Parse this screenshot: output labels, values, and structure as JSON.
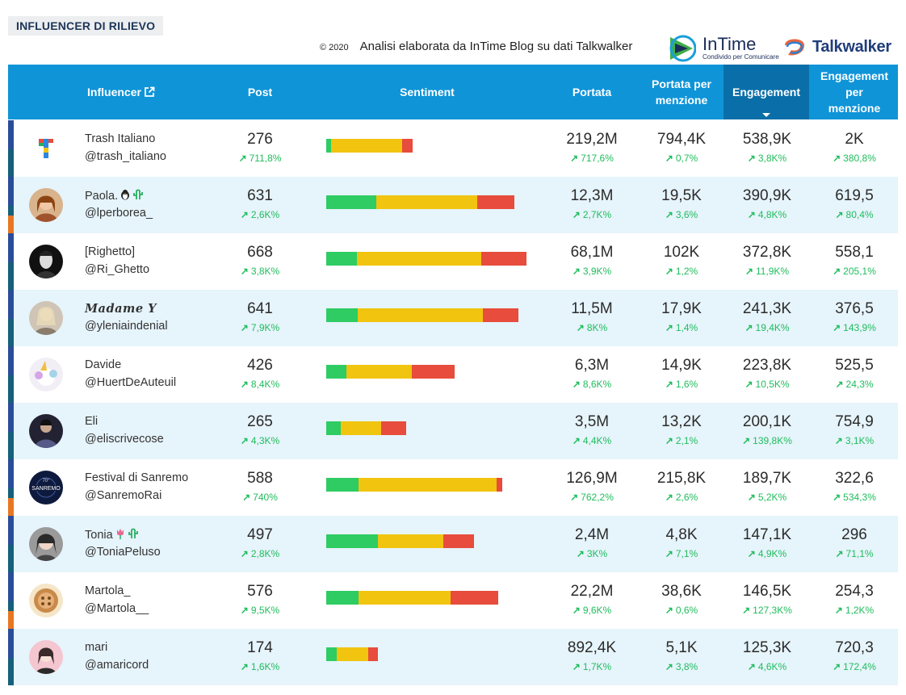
{
  "header": {
    "section_title": "INFLUENCER DI RILIEVO",
    "copyright": "© 2020",
    "credit": "Analisi elaborata da InTime Blog su dati Talkwalker",
    "intime_brand": "InTime",
    "intime_tagline": "Condivido per Comunicare",
    "talkwalker_brand": "Talkwalker"
  },
  "columns": {
    "influencer": "Influencer",
    "post": "Post",
    "sentiment": "Sentiment",
    "portata": "Portata",
    "portata_menzione_1": "Portata per",
    "portata_menzione_2": "menzione",
    "engagement": "Engagement",
    "eng_menzione_1": "Engagement",
    "eng_menzione_2": "per",
    "eng_menzione_3": "menzione"
  },
  "colors": {
    "header_bg": "#0f94d8",
    "active_header": "#0a6fa8",
    "positive": "#2ecc63",
    "neutral": "#f1c40f",
    "negative": "#e74c3c",
    "trend_up": "#1fbd5c"
  },
  "rows": [
    {
      "name": "Trash Italiano",
      "handle": "@trash_italiano",
      "post": "276",
      "post_chg": "711,8%",
      "sentiment": [
        6,
        88,
        13
      ],
      "portata": "219,2M",
      "portata_chg": "717,6%",
      "ppm": "794,4K",
      "ppm_chg": "0,7%",
      "eng": "538,9K",
      "eng_chg": "3,8K%",
      "epm": "2K",
      "epm_chg": "380,8%",
      "strip": "blue"
    },
    {
      "name": "Paola.",
      "handle": "@lperborea_",
      "post": "631",
      "post_chg": "2,6K%",
      "sentiment": [
        62,
        125,
        46
      ],
      "portata": "12,3M",
      "portata_chg": "2,7K%",
      "ppm": "19,5K",
      "ppm_chg": "3,6%",
      "eng": "390,9K",
      "eng_chg": "4,8K%",
      "epm": "619,5",
      "epm_chg": "80,4%",
      "strip": "orange"
    },
    {
      "name": "[Righetto]",
      "handle": "@Ri_Ghetto",
      "post": "668",
      "post_chg": "3,8K%",
      "sentiment": [
        38,
        154,
        56
      ],
      "portata": "68,1M",
      "portata_chg": "3,9K%",
      "ppm": "102K",
      "ppm_chg": "1,2%",
      "eng": "372,8K",
      "eng_chg": "11,9K%",
      "epm": "558,1",
      "epm_chg": "205,1%",
      "strip": "blue"
    },
    {
      "name": "Madame Y",
      "handle": "@yleniaindenial",
      "post": "641",
      "post_chg": "7,9K%",
      "sentiment": [
        39,
        155,
        44
      ],
      "portata": "11,5M",
      "portata_chg": "8K%",
      "ppm": "17,9K",
      "ppm_chg": "1,4%",
      "eng": "241,3K",
      "eng_chg": "19,4K%",
      "epm": "376,5",
      "epm_chg": "143,9%",
      "strip": "blue"
    },
    {
      "name": "Davide",
      "handle": "@HuertDeAuteuil",
      "post": "426",
      "post_chg": "8,4K%",
      "sentiment": [
        25,
        81,
        53
      ],
      "portata": "6,3M",
      "portata_chg": "8,6K%",
      "ppm": "14,9K",
      "ppm_chg": "1,6%",
      "eng": "223,8K",
      "eng_chg": "10,5K%",
      "epm": "525,5",
      "epm_chg": "24,3%",
      "strip": "blue"
    },
    {
      "name": "Eli",
      "handle": "@eliscrivecose",
      "post": "265",
      "post_chg": "4,3K%",
      "sentiment": [
        18,
        50,
        31
      ],
      "portata": "3,5M",
      "portata_chg": "4,4K%",
      "ppm": "13,2K",
      "ppm_chg": "2,1%",
      "eng": "200,1K",
      "eng_chg": "139,8K%",
      "epm": "754,9",
      "epm_chg": "3,1K%",
      "strip": "blue"
    },
    {
      "name": "Festival di Sanremo",
      "handle": "@SanremoRai",
      "post": "588",
      "post_chg": "740%",
      "sentiment": [
        40,
        171,
        7
      ],
      "portata": "126,9M",
      "portata_chg": "762,2%",
      "ppm": "215,8K",
      "ppm_chg": "2,6%",
      "eng": "189,7K",
      "eng_chg": "5,2K%",
      "epm": "322,6",
      "epm_chg": "534,3%",
      "strip": "orange"
    },
    {
      "name": "Tonia",
      "handle": "@ToniaPeluso",
      "post": "497",
      "post_chg": "2,8K%",
      "sentiment": [
        64,
        81,
        38
      ],
      "portata": "2,4M",
      "portata_chg": "3K%",
      "ppm": "4,8K",
      "ppm_chg": "7,1%",
      "eng": "147,1K",
      "eng_chg": "4,9K%",
      "epm": "296",
      "epm_chg": "71,1%",
      "strip": "blue"
    },
    {
      "name": "Martola_",
      "handle": "@Martola__",
      "post": "576",
      "post_chg": "9,5K%",
      "sentiment": [
        40,
        114,
        59
      ],
      "portata": "22,2M",
      "portata_chg": "9,6K%",
      "ppm": "38,6K",
      "ppm_chg": "0,6%",
      "eng": "146,5K",
      "eng_chg": "127,3K%",
      "epm": "254,3",
      "epm_chg": "1,2K%",
      "strip": "orange"
    },
    {
      "name": "mari",
      "handle": "@amaricord",
      "post": "174",
      "post_chg": "1,6K%",
      "sentiment": [
        13,
        39,
        12
      ],
      "portata": "892,4K",
      "portata_chg": "1,7K%",
      "ppm": "5,1K",
      "ppm_chg": "3,8%",
      "eng": "125,3K",
      "eng_chg": "4,6K%",
      "epm": "720,3",
      "epm_chg": "172,4%",
      "strip": "blue"
    }
  ]
}
